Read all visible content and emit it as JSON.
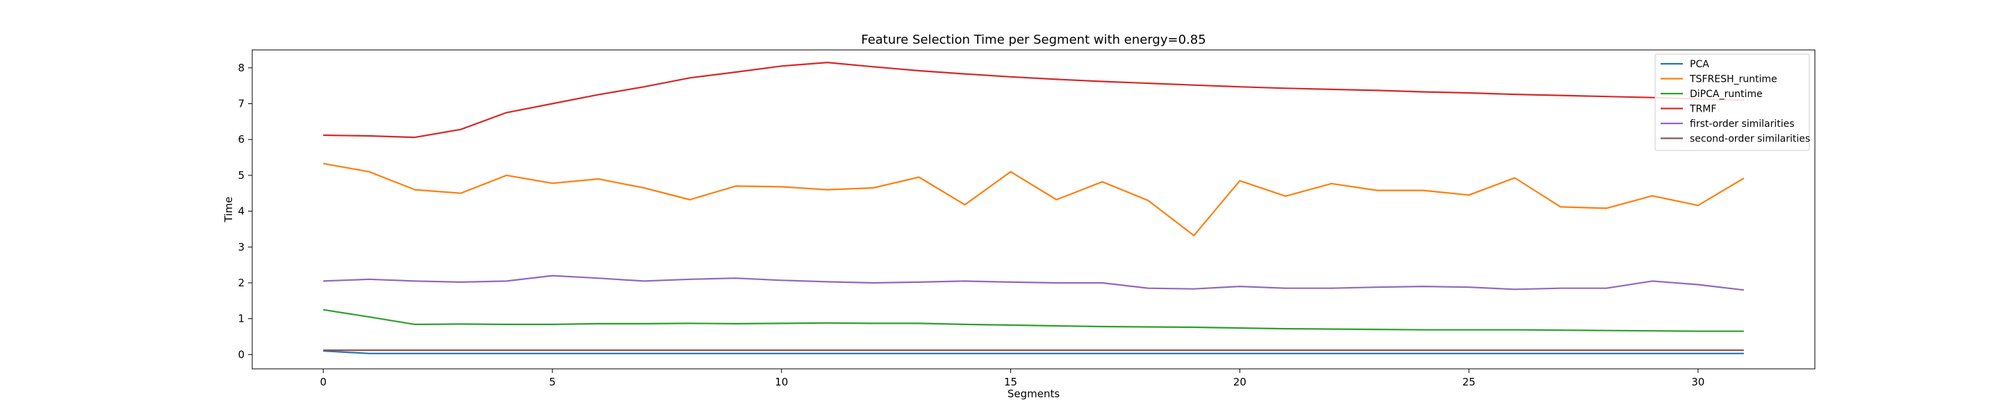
{
  "chart_data": {
    "type": "line",
    "title": "Feature Selection Time per Segment with energy=0.85",
    "xlabel": "Segments",
    "ylabel": "Time",
    "xlim": [
      -1.55,
      32.55
    ],
    "ylim": [
      -0.4,
      8.5
    ],
    "xticks": [
      0,
      5,
      10,
      15,
      20,
      25,
      30
    ],
    "yticks": [
      0,
      1,
      2,
      3,
      4,
      5,
      6,
      7,
      8
    ],
    "grid": false,
    "legend_position": "top-right",
    "x": [
      0,
      1,
      2,
      3,
      4,
      5,
      6,
      7,
      8,
      9,
      10,
      11,
      12,
      13,
      14,
      15,
      16,
      17,
      18,
      19,
      20,
      21,
      22,
      23,
      24,
      25,
      26,
      27,
      28,
      29,
      30,
      31
    ],
    "series": [
      {
        "name": "PCA",
        "color": "#1f77b4",
        "values": [
          0.1,
          0.03,
          0.03,
          0.03,
          0.03,
          0.03,
          0.03,
          0.03,
          0.03,
          0.03,
          0.03,
          0.03,
          0.03,
          0.03,
          0.03,
          0.03,
          0.03,
          0.03,
          0.03,
          0.03,
          0.03,
          0.03,
          0.03,
          0.03,
          0.03,
          0.03,
          0.03,
          0.03,
          0.03,
          0.03,
          0.03,
          0.03
        ]
      },
      {
        "name": "TSFRESH_runtime",
        "color": "#ff7f0e",
        "values": [
          5.33,
          5.1,
          4.6,
          4.5,
          5.0,
          4.78,
          4.9,
          4.65,
          4.32,
          4.7,
          4.68,
          4.6,
          4.65,
          4.95,
          4.18,
          5.1,
          4.32,
          4.82,
          4.3,
          3.32,
          4.85,
          4.42,
          4.77,
          4.58,
          4.58,
          4.45,
          4.93,
          4.12,
          4.08,
          4.43,
          4.16,
          4.92
        ]
      },
      {
        "name": "DiPCA_runtime",
        "color": "#2ca02c",
        "values": [
          1.25,
          1.05,
          0.84,
          0.85,
          0.84,
          0.84,
          0.86,
          0.86,
          0.87,
          0.86,
          0.87,
          0.88,
          0.87,
          0.87,
          0.84,
          0.82,
          0.8,
          0.78,
          0.77,
          0.76,
          0.74,
          0.72,
          0.71,
          0.7,
          0.69,
          0.69,
          0.69,
          0.68,
          0.67,
          0.66,
          0.65,
          0.65
        ]
      },
      {
        "name": "TRMF",
        "color": "#d62728",
        "values": [
          6.12,
          6.1,
          6.06,
          6.28,
          6.75,
          7.0,
          7.25,
          7.47,
          7.72,
          7.88,
          8.05,
          8.15,
          8.03,
          7.92,
          7.83,
          7.75,
          7.68,
          7.62,
          7.57,
          7.52,
          7.47,
          7.43,
          7.4,
          7.37,
          7.33,
          7.3,
          7.26,
          7.23,
          7.2,
          7.17,
          7.13,
          7.1
        ]
      },
      {
        "name": "first-order similarities",
        "color": "#9467bd",
        "values": [
          2.05,
          2.1,
          2.05,
          2.02,
          2.05,
          2.2,
          2.13,
          2.05,
          2.1,
          2.13,
          2.07,
          2.03,
          2.0,
          2.02,
          2.05,
          2.02,
          2.0,
          2.0,
          1.85,
          1.83,
          1.9,
          1.85,
          1.85,
          1.88,
          1.9,
          1.88,
          1.82,
          1.85,
          1.85,
          2.05,
          1.95,
          1.8
        ]
      },
      {
        "name": "second-order similarities",
        "color": "#8c564b",
        "values": [
          0.12,
          0.12,
          0.12,
          0.12,
          0.12,
          0.12,
          0.12,
          0.12,
          0.12,
          0.12,
          0.12,
          0.12,
          0.12,
          0.12,
          0.12,
          0.12,
          0.12,
          0.12,
          0.12,
          0.12,
          0.12,
          0.12,
          0.12,
          0.12,
          0.12,
          0.12,
          0.12,
          0.12,
          0.12,
          0.12,
          0.12,
          0.12
        ]
      }
    ]
  }
}
